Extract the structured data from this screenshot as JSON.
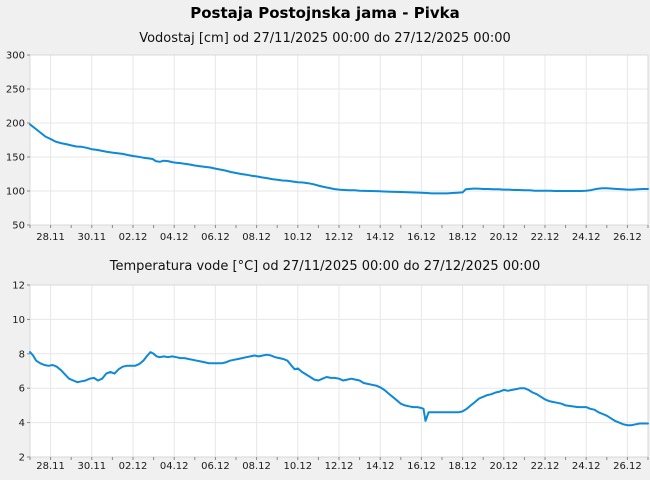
{
  "page": {
    "title": "Postaja Postojnska jama - Pivka",
    "background": "#f0f0f0",
    "plot_background": "#ffffff",
    "grid_color": "#e7e7e7",
    "border_color": "#d9d9d9",
    "tick_color": "#888888",
    "label_color": "#1a1a1a",
    "accent_line_color": "#0d89d8"
  },
  "chart_data": [
    {
      "id": "vodostaj",
      "type": "line",
      "title": "Vodostaj [cm] od 27/11/2025 00:00 do 27/12/2025 00:00",
      "unit": "cm",
      "xlim_days": [
        0,
        30
      ],
      "ylim": [
        50,
        300
      ],
      "y_ticks": [
        50,
        100,
        150,
        200,
        250,
        300
      ],
      "x_ticks": [
        {
          "day": 1,
          "label": "28.11"
        },
        {
          "day": 3,
          "label": "30.11"
        },
        {
          "day": 5,
          "label": "02.12"
        },
        {
          "day": 7,
          "label": "04.12"
        },
        {
          "day": 9,
          "label": "06.12"
        },
        {
          "day": 11,
          "label": "08.12"
        },
        {
          "day": 13,
          "label": "10.12"
        },
        {
          "day": 15,
          "label": "12.12"
        },
        {
          "day": 17,
          "label": "14.12"
        },
        {
          "day": 19,
          "label": "16.12"
        },
        {
          "day": 21,
          "label": "18.12"
        },
        {
          "day": 23,
          "label": "20.12"
        },
        {
          "day": 25,
          "label": "22.12"
        },
        {
          "day": 27,
          "label": "24.12"
        },
        {
          "day": 29,
          "label": "26.12"
        }
      ],
      "grid": true,
      "legend": "none",
      "line_color": "#0d89d8",
      "points": [
        [
          0,
          198
        ],
        [
          0.25,
          192
        ],
        [
          0.5,
          186
        ],
        [
          0.75,
          180
        ],
        [
          1,
          176.5
        ],
        [
          1.25,
          172.5
        ],
        [
          1.5,
          170.5
        ],
        [
          1.75,
          169
        ],
        [
          2,
          167
        ],
        [
          2.25,
          165.5
        ],
        [
          2.5,
          165
        ],
        [
          2.75,
          163.5
        ],
        [
          3,
          161.5
        ],
        [
          3.25,
          160.5
        ],
        [
          3.5,
          159
        ],
        [
          3.75,
          157.5
        ],
        [
          4,
          156.5
        ],
        [
          4.25,
          155.5
        ],
        [
          4.5,
          154.5
        ],
        [
          4.75,
          153
        ],
        [
          5,
          151.5
        ],
        [
          5.25,
          150.5
        ],
        [
          5.5,
          149
        ],
        [
          5.75,
          148
        ],
        [
          5.95,
          147
        ],
        [
          6.1,
          144
        ],
        [
          6.3,
          143
        ],
        [
          6.5,
          144.5
        ],
        [
          6.7,
          144
        ],
        [
          6.9,
          142.5
        ],
        [
          7.1,
          141.5
        ],
        [
          7.3,
          141
        ],
        [
          7.5,
          140
        ],
        [
          7.75,
          139
        ],
        [
          8,
          137.5
        ],
        [
          8.25,
          136.5
        ],
        [
          8.5,
          135.5
        ],
        [
          8.75,
          134.5
        ],
        [
          9,
          133
        ],
        [
          9.25,
          131.5
        ],
        [
          9.5,
          130
        ],
        [
          9.75,
          128
        ],
        [
          10,
          126.5
        ],
        [
          10.25,
          125
        ],
        [
          10.5,
          124
        ],
        [
          10.75,
          122.5
        ],
        [
          11,
          121.5
        ],
        [
          11.25,
          120
        ],
        [
          11.5,
          119
        ],
        [
          11.75,
          117.5
        ],
        [
          12,
          116.5
        ],
        [
          12.25,
          115.5
        ],
        [
          12.5,
          115
        ],
        [
          12.75,
          114
        ],
        [
          13,
          113
        ],
        [
          13.25,
          112.5
        ],
        [
          13.5,
          111.5
        ],
        [
          13.75,
          110
        ],
        [
          14,
          108
        ],
        [
          14.25,
          106
        ],
        [
          14.5,
          104.5
        ],
        [
          14.75,
          103
        ],
        [
          15,
          102
        ],
        [
          15.25,
          101.5
        ],
        [
          15.5,
          101
        ],
        [
          15.75,
          101
        ],
        [
          16,
          100.5
        ],
        [
          16.5,
          100
        ],
        [
          17,
          99.5
        ],
        [
          17.5,
          99
        ],
        [
          18,
          98.5
        ],
        [
          18.5,
          98
        ],
        [
          19,
          97.5
        ],
        [
          19.25,
          97
        ],
        [
          19.5,
          96.5
        ],
        [
          19.75,
          96.5
        ],
        [
          20,
          96.5
        ],
        [
          20.25,
          96.5
        ],
        [
          20.5,
          97
        ],
        [
          20.75,
          97.5
        ],
        [
          21,
          98
        ],
        [
          21.15,
          102.5
        ],
        [
          21.3,
          103
        ],
        [
          21.5,
          103.5
        ],
        [
          21.75,
          103.5
        ],
        [
          22,
          103
        ],
        [
          22.25,
          103
        ],
        [
          22.5,
          102.5
        ],
        [
          22.75,
          102.5
        ],
        [
          23,
          102
        ],
        [
          23.25,
          102
        ],
        [
          23.5,
          101.5
        ],
        [
          23.75,
          101.5
        ],
        [
          24,
          101
        ],
        [
          24.25,
          101
        ],
        [
          24.5,
          100.5
        ],
        [
          24.75,
          100.5
        ],
        [
          25,
          100.5
        ],
        [
          25.25,
          100.5
        ],
        [
          25.5,
          100
        ],
        [
          25.75,
          100
        ],
        [
          26,
          100
        ],
        [
          26.25,
          100
        ],
        [
          26.5,
          100
        ],
        [
          26.75,
          100
        ],
        [
          27,
          100.5
        ],
        [
          27.2,
          101
        ],
        [
          27.4,
          102.5
        ],
        [
          27.6,
          103.5
        ],
        [
          27.8,
          104
        ],
        [
          28,
          104
        ],
        [
          28.25,
          103.5
        ],
        [
          28.5,
          103
        ],
        [
          28.75,
          102.5
        ],
        [
          29,
          102
        ],
        [
          29.25,
          102
        ],
        [
          29.5,
          102.5
        ],
        [
          29.75,
          103
        ],
        [
          30,
          103
        ]
      ]
    },
    {
      "id": "temperatura",
      "type": "line",
      "title": "Temperatura vode [°C] od 27/11/2025 00:00 do 27/12/2025 00:00",
      "unit": "°C",
      "xlim_days": [
        0,
        30
      ],
      "ylim": [
        2,
        12
      ],
      "y_ticks": [
        2,
        4,
        6,
        8,
        10,
        12
      ],
      "x_ticks": [
        {
          "day": 1,
          "label": "28.11"
        },
        {
          "day": 3,
          "label": "30.11"
        },
        {
          "day": 5,
          "label": "02.12"
        },
        {
          "day": 7,
          "label": "04.12"
        },
        {
          "day": 9,
          "label": "06.12"
        },
        {
          "day": 11,
          "label": "08.12"
        },
        {
          "day": 13,
          "label": "10.12"
        },
        {
          "day": 15,
          "label": "12.12"
        },
        {
          "day": 17,
          "label": "14.12"
        },
        {
          "day": 19,
          "label": "16.12"
        },
        {
          "day": 21,
          "label": "18.12"
        },
        {
          "day": 23,
          "label": "20.12"
        },
        {
          "day": 25,
          "label": "22.12"
        },
        {
          "day": 27,
          "label": "24.12"
        },
        {
          "day": 29,
          "label": "26.12"
        }
      ],
      "grid": true,
      "legend": "none",
      "line_color": "#0d89d8",
      "points": [
        [
          0,
          8.1
        ],
        [
          0.15,
          7.9
        ],
        [
          0.3,
          7.6
        ],
        [
          0.5,
          7.45
        ],
        [
          0.7,
          7.35
        ],
        [
          0.9,
          7.3
        ],
        [
          1.1,
          7.35
        ],
        [
          1.3,
          7.25
        ],
        [
          1.5,
          7.05
        ],
        [
          1.7,
          6.8
        ],
        [
          1.9,
          6.55
        ],
        [
          2.1,
          6.45
        ],
        [
          2.3,
          6.35
        ],
        [
          2.5,
          6.4
        ],
        [
          2.7,
          6.45
        ],
        [
          2.9,
          6.55
        ],
        [
          3.1,
          6.6
        ],
        [
          3.3,
          6.45
        ],
        [
          3.5,
          6.55
        ],
        [
          3.7,
          6.85
        ],
        [
          3.9,
          6.95
        ],
        [
          4.1,
          6.85
        ],
        [
          4.3,
          7.1
        ],
        [
          4.5,
          7.25
        ],
        [
          4.7,
          7.3
        ],
        [
          4.9,
          7.3
        ],
        [
          5.1,
          7.3
        ],
        [
          5.3,
          7.4
        ],
        [
          5.5,
          7.6
        ],
        [
          5.7,
          7.9
        ],
        [
          5.85,
          8.1
        ],
        [
          6,
          8.0
        ],
        [
          6.15,
          7.85
        ],
        [
          6.3,
          7.8
        ],
        [
          6.5,
          7.85
        ],
        [
          6.7,
          7.8
        ],
        [
          6.9,
          7.85
        ],
        [
          7.1,
          7.8
        ],
        [
          7.3,
          7.75
        ],
        [
          7.5,
          7.75
        ],
        [
          7.7,
          7.7
        ],
        [
          7.9,
          7.65
        ],
        [
          8.1,
          7.6
        ],
        [
          8.3,
          7.55
        ],
        [
          8.5,
          7.5
        ],
        [
          8.7,
          7.45
        ],
        [
          9,
          7.45
        ],
        [
          9.3,
          7.45
        ],
        [
          9.5,
          7.5
        ],
        [
          9.7,
          7.6
        ],
        [
          9.9,
          7.65
        ],
        [
          10.1,
          7.7
        ],
        [
          10.3,
          7.75
        ],
        [
          10.5,
          7.8
        ],
        [
          10.7,
          7.85
        ],
        [
          10.9,
          7.9
        ],
        [
          11.1,
          7.85
        ],
        [
          11.3,
          7.9
        ],
        [
          11.5,
          7.95
        ],
        [
          11.7,
          7.9
        ],
        [
          11.9,
          7.8
        ],
        [
          12.1,
          7.75
        ],
        [
          12.3,
          7.7
        ],
        [
          12.5,
          7.6
        ],
        [
          12.7,
          7.3
        ],
        [
          12.85,
          7.1
        ],
        [
          13,
          7.15
        ],
        [
          13.2,
          6.95
        ],
        [
          13.4,
          6.8
        ],
        [
          13.6,
          6.65
        ],
        [
          13.8,
          6.5
        ],
        [
          14,
          6.45
        ],
        [
          14.2,
          6.55
        ],
        [
          14.4,
          6.65
        ],
        [
          14.6,
          6.6
        ],
        [
          14.8,
          6.6
        ],
        [
          15,
          6.55
        ],
        [
          15.2,
          6.45
        ],
        [
          15.4,
          6.5
        ],
        [
          15.6,
          6.55
        ],
        [
          15.8,
          6.5
        ],
        [
          16,
          6.45
        ],
        [
          16.2,
          6.3
        ],
        [
          16.4,
          6.25
        ],
        [
          16.6,
          6.2
        ],
        [
          16.8,
          6.15
        ],
        [
          17,
          6.05
        ],
        [
          17.2,
          5.9
        ],
        [
          17.4,
          5.7
        ],
        [
          17.6,
          5.5
        ],
        [
          17.8,
          5.3
        ],
        [
          18,
          5.1
        ],
        [
          18.2,
          5.0
        ],
        [
          18.4,
          4.95
        ],
        [
          18.6,
          4.9
        ],
        [
          18.8,
          4.9
        ],
        [
          19,
          4.85
        ],
        [
          19.1,
          4.8
        ],
        [
          19.2,
          4.1
        ],
        [
          19.35,
          4.6
        ],
        [
          19.6,
          4.6
        ],
        [
          20,
          4.6
        ],
        [
          20.4,
          4.6
        ],
        [
          20.8,
          4.6
        ],
        [
          21,
          4.65
        ],
        [
          21.2,
          4.8
        ],
        [
          21.4,
          5.0
        ],
        [
          21.6,
          5.2
        ],
        [
          21.8,
          5.4
        ],
        [
          22,
          5.5
        ],
        [
          22.2,
          5.6
        ],
        [
          22.4,
          5.65
        ],
        [
          22.6,
          5.75
        ],
        [
          22.8,
          5.8
        ],
        [
          23,
          5.9
        ],
        [
          23.2,
          5.85
        ],
        [
          23.4,
          5.9
        ],
        [
          23.6,
          5.95
        ],
        [
          23.8,
          6.0
        ],
        [
          24,
          6.0
        ],
        [
          24.2,
          5.9
        ],
        [
          24.4,
          5.75
        ],
        [
          24.6,
          5.65
        ],
        [
          24.8,
          5.5
        ],
        [
          25,
          5.35
        ],
        [
          25.2,
          5.25
        ],
        [
          25.4,
          5.2
        ],
        [
          25.6,
          5.15
        ],
        [
          25.8,
          5.1
        ],
        [
          26,
          5.0
        ],
        [
          26.3,
          4.95
        ],
        [
          26.6,
          4.9
        ],
        [
          27,
          4.9
        ],
        [
          27.2,
          4.8
        ],
        [
          27.4,
          4.75
        ],
        [
          27.6,
          4.6
        ],
        [
          27.8,
          4.5
        ],
        [
          28,
          4.4
        ],
        [
          28.2,
          4.25
        ],
        [
          28.4,
          4.1
        ],
        [
          28.6,
          4.0
        ],
        [
          28.8,
          3.9
        ],
        [
          29,
          3.85
        ],
        [
          29.2,
          3.85
        ],
        [
          29.4,
          3.9
        ],
        [
          29.6,
          3.95
        ],
        [
          29.8,
          3.95
        ],
        [
          30,
          3.95
        ]
      ]
    }
  ]
}
